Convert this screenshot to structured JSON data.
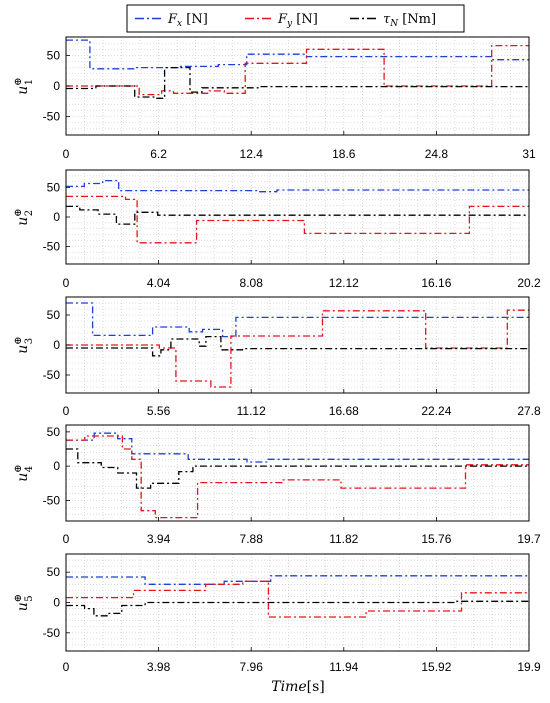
{
  "chart_data": {
    "type": "line",
    "xlabel_italic": "Time",
    "xlabel_unit": "[s]",
    "legend": [
      {
        "label": "F",
        "sub": "x",
        "unit": " [N]",
        "color": "#1f3fd9",
        "dash": "9 3 2 3"
      },
      {
        "label": "F",
        "sub": "y",
        "unit": " [N]",
        "color": "#e8141c",
        "dash": "9 3 2 3"
      },
      {
        "label": "τ",
        "sub": "N",
        "unit": " [Nm]",
        "color": "#000000",
        "dash": "9 3 2 3"
      }
    ],
    "colors": {
      "fx": "#1f3fd9",
      "fy": "#e8141c",
      "tau": "#000000"
    },
    "panels": [
      {
        "ylabel": "u",
        "sup": "⊕",
        "sub": "1",
        "xlim": [
          0,
          31
        ],
        "ylim": [
          -80,
          80
        ],
        "xticks": [
          "0",
          "6.2",
          "12.4",
          "18.6",
          "24.8",
          "31"
        ],
        "yticks": [
          "-50",
          "0",
          "50"
        ],
        "ytick_values": [
          -50,
          0,
          50
        ],
        "series": {
          "fx": [
            [
              0,
              75
            ],
            [
              1.6,
              75
            ],
            [
              1.6,
              28
            ],
            [
              4.6,
              28
            ],
            [
              4.6,
              30
            ],
            [
              7.5,
              30
            ],
            [
              7.5,
              32
            ],
            [
              10.2,
              32
            ],
            [
              10.2,
              35
            ],
            [
              12.1,
              35
            ],
            [
              12.1,
              52
            ],
            [
              16.1,
              52
            ],
            [
              16.1,
              48
            ],
            [
              28.5,
              48
            ],
            [
              28.5,
              43
            ],
            [
              31,
              43
            ]
          ],
          "fy": [
            [
              0,
              0
            ],
            [
              4.9,
              0
            ],
            [
              4.9,
              -14
            ],
            [
              6.4,
              -14
            ],
            [
              6.4,
              -8
            ],
            [
              7.2,
              -8
            ],
            [
              7.2,
              -12
            ],
            [
              9.6,
              -12
            ],
            [
              9.6,
              -8
            ],
            [
              10.6,
              -8
            ],
            [
              10.6,
              -12
            ],
            [
              12,
              -12
            ],
            [
              12,
              37
            ],
            [
              16.1,
              37
            ],
            [
              16.1,
              60
            ],
            [
              21.3,
              60
            ],
            [
              21.3,
              0
            ],
            [
              28.5,
              0
            ],
            [
              28.5,
              66
            ],
            [
              31,
              66
            ]
          ],
          "tau": [
            [
              0,
              -4
            ],
            [
              2,
              -4
            ],
            [
              2,
              0
            ],
            [
              4.6,
              0
            ],
            [
              4.6,
              -18
            ],
            [
              6,
              -18
            ],
            [
              6,
              -20
            ],
            [
              6.6,
              -20
            ],
            [
              6.6,
              30
            ],
            [
              8.3,
              30
            ],
            [
              8.3,
              -10
            ],
            [
              9.1,
              -10
            ],
            [
              9.1,
              -3
            ],
            [
              13,
              -3
            ],
            [
              13,
              -1
            ],
            [
              31,
              -1
            ]
          ]
        }
      },
      {
        "ylabel": "u",
        "sup": "⊕",
        "sub": "2",
        "xlim": [
          0,
          20.2
        ],
        "ylim": [
          -80,
          80
        ],
        "xticks": [
          "0",
          "4.04",
          "8.08",
          "12.12",
          "16.16",
          "20.2"
        ],
        "yticks": [
          "-50",
          "0",
          "50"
        ],
        "ytick_values": [
          -50,
          0,
          50
        ],
        "series": {
          "fx": [
            [
              0,
              52
            ],
            [
              0.8,
              52
            ],
            [
              0.8,
              57
            ],
            [
              1.6,
              57
            ],
            [
              1.6,
              62
            ],
            [
              2.3,
              62
            ],
            [
              2.3,
              45
            ],
            [
              8.4,
              45
            ],
            [
              8.4,
              43
            ],
            [
              9.2,
              43
            ],
            [
              9.2,
              46
            ],
            [
              20.2,
              46
            ]
          ],
          "fy": [
            [
              0,
              35
            ],
            [
              2.6,
              35
            ],
            [
              2.6,
              30
            ],
            [
              3.1,
              30
            ],
            [
              3.1,
              -44
            ],
            [
              5.7,
              -44
            ],
            [
              5.7,
              -6
            ],
            [
              10.4,
              -6
            ],
            [
              10.4,
              -28
            ],
            [
              17.6,
              -28
            ],
            [
              17.6,
              18
            ],
            [
              20.2,
              18
            ]
          ],
          "tau": [
            [
              0,
              18
            ],
            [
              0.6,
              18
            ],
            [
              0.6,
              12
            ],
            [
              1.4,
              12
            ],
            [
              1.4,
              5
            ],
            [
              2.2,
              5
            ],
            [
              2.2,
              -12
            ],
            [
              3.0,
              -12
            ],
            [
              3.0,
              8
            ],
            [
              4.0,
              8
            ],
            [
              4.0,
              3
            ],
            [
              20.2,
              3
            ]
          ]
        }
      },
      {
        "ylabel": "u",
        "sup": "⊕",
        "sub": "3",
        "xlim": [
          0,
          27.8
        ],
        "ylim": [
          -80,
          80
        ],
        "xticks": [
          "0",
          "5.56",
          "11.12",
          "16.68",
          "22.24",
          "27.8"
        ],
        "yticks": [
          "-50",
          "0",
          "50"
        ],
        "ytick_values": [
          -50,
          0,
          50
        ],
        "series": {
          "fx": [
            [
              0,
              70
            ],
            [
              1.6,
              70
            ],
            [
              1.6,
              16
            ],
            [
              5.2,
              16
            ],
            [
              5.2,
              30
            ],
            [
              7.4,
              30
            ],
            [
              7.4,
              22
            ],
            [
              8.2,
              22
            ],
            [
              8.2,
              26
            ],
            [
              9.4,
              26
            ],
            [
              9.4,
              14
            ],
            [
              10.2,
              14
            ],
            [
              10.2,
              46
            ],
            [
              27.8,
              46
            ]
          ],
          "fy": [
            [
              0,
              0
            ],
            [
              5.6,
              0
            ],
            [
              5.6,
              -5
            ],
            [
              6.6,
              -5
            ],
            [
              6.6,
              -60
            ],
            [
              8.7,
              -60
            ],
            [
              8.7,
              -70
            ],
            [
              9.9,
              -70
            ],
            [
              9.9,
              15
            ],
            [
              15.4,
              15
            ],
            [
              15.4,
              57
            ],
            [
              21.6,
              57
            ],
            [
              21.6,
              -5
            ],
            [
              26.5,
              -5
            ],
            [
              26.5,
              58
            ],
            [
              27.8,
              58
            ]
          ],
          "tau": [
            [
              0,
              -5
            ],
            [
              5.2,
              -5
            ],
            [
              5.2,
              -18
            ],
            [
              5.7,
              -18
            ],
            [
              5.7,
              -8
            ],
            [
              6.3,
              -8
            ],
            [
              6.3,
              10
            ],
            [
              8.0,
              10
            ],
            [
              8.0,
              -2
            ],
            [
              8.4,
              -2
            ],
            [
              8.4,
              14
            ],
            [
              9.3,
              14
            ],
            [
              9.3,
              -8
            ],
            [
              10.6,
              -8
            ],
            [
              10.6,
              -6
            ],
            [
              27.8,
              -6
            ]
          ]
        }
      },
      {
        "ylabel": "u",
        "sup": "⊕",
        "sub": "4",
        "xlim": [
          0,
          19.7
        ],
        "ylim": [
          -80,
          60
        ],
        "xticks": [
          "0",
          "3.94",
          "7.88",
          "11.82",
          "15.76",
          "19.7"
        ],
        "yticks": [
          "-50",
          "0",
          "50"
        ],
        "ytick_values": [
          -50,
          0,
          50
        ],
        "series": {
          "fx": [
            [
              0,
              38
            ],
            [
              1.2,
              38
            ],
            [
              1.2,
              48
            ],
            [
              2.2,
              48
            ],
            [
              2.2,
              40
            ],
            [
              2.8,
              40
            ],
            [
              2.8,
              18
            ],
            [
              5.2,
              18
            ],
            [
              5.2,
              10
            ],
            [
              7.7,
              10
            ],
            [
              7.7,
              6
            ],
            [
              8.6,
              6
            ],
            [
              8.6,
              10
            ],
            [
              19.7,
              10
            ]
          ],
          "fy": [
            [
              0,
              38
            ],
            [
              0.8,
              38
            ],
            [
              0.8,
              44
            ],
            [
              2.4,
              44
            ],
            [
              2.4,
              25
            ],
            [
              2.8,
              25
            ],
            [
              2.8,
              10
            ],
            [
              3.2,
              10
            ],
            [
              3.2,
              -65
            ],
            [
              3.8,
              -65
            ],
            [
              3.8,
              -75
            ],
            [
              5.6,
              -75
            ],
            [
              5.6,
              -24
            ],
            [
              9.2,
              -24
            ],
            [
              9.2,
              -20
            ],
            [
              11.7,
              -20
            ],
            [
              11.7,
              -32
            ],
            [
              17,
              -32
            ],
            [
              17,
              2
            ],
            [
              19.7,
              2
            ]
          ],
          "tau": [
            [
              0,
              25
            ],
            [
              0.5,
              25
            ],
            [
              0.5,
              5
            ],
            [
              1.5,
              5
            ],
            [
              1.5,
              -2
            ],
            [
              2.2,
              -2
            ],
            [
              2.2,
              -10
            ],
            [
              3.0,
              -10
            ],
            [
              3.0,
              -32
            ],
            [
              3.6,
              -32
            ],
            [
              3.6,
              -25
            ],
            [
              4.8,
              -25
            ],
            [
              4.8,
              -8
            ],
            [
              5.4,
              -8
            ],
            [
              5.4,
              0
            ],
            [
              19.7,
              0
            ]
          ]
        }
      },
      {
        "ylabel": "u",
        "sup": "⊕",
        "sub": "5",
        "xlim": [
          0,
          19.9
        ],
        "ylim": [
          -80,
          80
        ],
        "xticks": [
          "0",
          "3.98",
          "7.96",
          "11.94",
          "15.92",
          "19.9"
        ],
        "yticks": [
          "-50",
          "0",
          "50"
        ],
        "ytick_values": [
          -50,
          0,
          50
        ],
        "series": {
          "fx": [
            [
              0,
              42
            ],
            [
              3.4,
              42
            ],
            [
              3.4,
              30
            ],
            [
              6.8,
              30
            ],
            [
              6.8,
              35
            ],
            [
              8.8,
              35
            ],
            [
              8.8,
              44
            ],
            [
              19.9,
              44
            ]
          ],
          "fy": [
            [
              0,
              8
            ],
            [
              2.9,
              8
            ],
            [
              2.9,
              20
            ],
            [
              6.0,
              20
            ],
            [
              6.0,
              30
            ],
            [
              7.6,
              30
            ],
            [
              7.6,
              35
            ],
            [
              8.7,
              35
            ],
            [
              8.7,
              -24
            ],
            [
              12.9,
              -24
            ],
            [
              12.9,
              -14
            ],
            [
              17,
              -14
            ],
            [
              17,
              16
            ],
            [
              19.9,
              16
            ]
          ],
          "tau": [
            [
              0,
              -5
            ],
            [
              0.8,
              -5
            ],
            [
              0.8,
              -10
            ],
            [
              1.2,
              -10
            ],
            [
              1.2,
              -22
            ],
            [
              1.8,
              -22
            ],
            [
              1.8,
              -18
            ],
            [
              2.4,
              -18
            ],
            [
              2.4,
              -5
            ],
            [
              3.4,
              -5
            ],
            [
              3.4,
              0
            ],
            [
              16.8,
              0
            ],
            [
              16.8,
              2
            ],
            [
              19.9,
              2
            ]
          ]
        }
      }
    ]
  }
}
